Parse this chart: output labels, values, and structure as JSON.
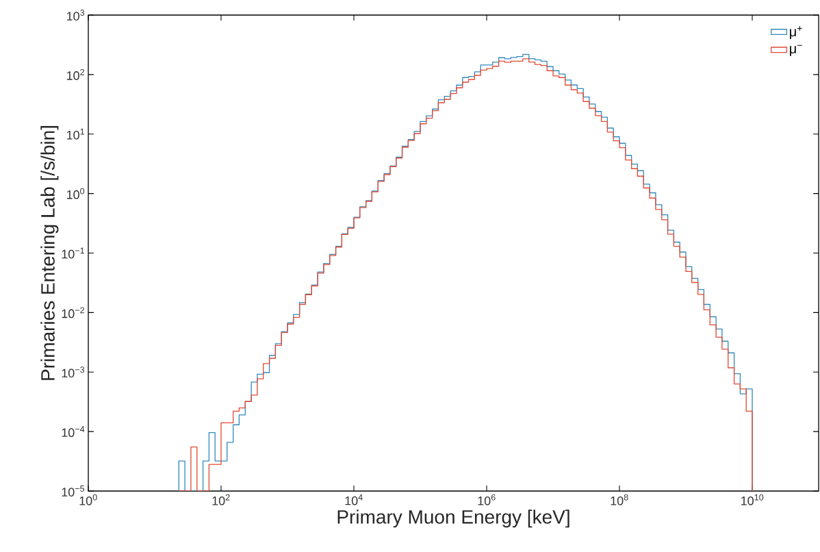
{
  "chart_data": {
    "type": "histogram",
    "xlabel": "Primary Muon Energy [keV]",
    "ylabel": "Primaries Entering Lab [/s/bin]",
    "log": "xy",
    "legend": "top right",
    "xlim": [
      1,
      100000000000.0
    ],
    "ylim": [
      1e-05,
      1000.0
    ],
    "xticks": [
      {
        "value": 1,
        "label": "10$^{0}$"
      },
      {
        "value": 100.0,
        "label": "10$^{2}$"
      },
      {
        "value": 10000.0,
        "label": "10$^{4}$"
      },
      {
        "value": 1000000.0,
        "label": "10$^{6}$"
      },
      {
        "value": 100000000.0,
        "label": "10$^{8}$"
      },
      {
        "value": 10000000000.0,
        "label": "10$^{10}$"
      }
    ],
    "yticks": [
      {
        "value": 1e-05,
        "label": "10$^{−5}$"
      },
      {
        "value": 0.0001,
        "label": "10$^{−4}$"
      },
      {
        "value": 0.001,
        "label": "10$^{−3}$"
      },
      {
        "value": 0.01,
        "label": "10$^{−2}$"
      },
      {
        "value": 0.1,
        "label": "10$^{−1}$"
      },
      {
        "value": 1,
        "label": "10$^{0}$"
      },
      {
        "value": 10.0,
        "label": "10$^{1}$"
      },
      {
        "value": 100.0,
        "label": "10$^{2}$"
      },
      {
        "value": 1000.0,
        "label": "10$^{3}$"
      }
    ],
    "bins": [
      23.1,
      28.5,
      35.1,
      43.3,
      53.4,
      65.8,
      81.1,
      100.0,
      123.0,
      152.0,
      187.0,
      231.0,
      285.0,
      351.0,
      433.0,
      534.0,
      658.0,
      811.0,
      1000.0,
      1230.0,
      1520.0,
      1870.0,
      2310.0,
      2850.0,
      3510.0,
      4330.0,
      5340.0,
      6580.0,
      8110.0,
      10000.0,
      12300.0,
      15200.0,
      18700.0,
      23100.0,
      28500.0,
      35100.0,
      43300.0,
      53400.0,
      65800.0,
      81100.0,
      100000.0,
      123000.0,
      152000.0,
      187000.0,
      231000.0,
      285000.0,
      351000.0,
      433000.0,
      534000.0,
      658000.0,
      811000.0,
      1000000.0,
      1230000.0,
      1520000.0,
      1870000.0,
      2310000.0,
      2850000.0,
      3510000.0,
      4330000.0,
      5340000.0,
      6580000.0,
      8110000.0,
      10000000.0,
      12300000.0,
      15200000.0,
      18700000.0,
      23100000.0,
      28500000.0,
      35100000.0,
      43300000.0,
      53400000.0,
      65800000.0,
      81100000.0,
      100000000.0,
      123000000.0,
      152000000.0,
      187000000.0,
      231000000.0,
      285000000.0,
      351000000.0,
      433000000.0,
      534000000.0,
      658000000.0,
      811000000.0,
      1000000000.0,
      1230000000.0,
      1520000000.0,
      1870000000.0,
      2310000000.0,
      2850000000.0,
      3510000000.0,
      4330000000.0,
      5340000000.0,
      6580000000.0,
      8110000000.0,
      10000000000.0
    ],
    "series": [
      {
        "name": "μ$^{+}$",
        "color": "#348abd",
        "values": [
          3.2e-05,
          null,
          null,
          null,
          3.2e-05,
          9.6e-05,
          3.2e-05,
          3.2e-05,
          6.6e-05,
          0.00013,
          0.00019,
          0.00032,
          0.00068,
          0.00092,
          0.00098,
          0.0019,
          0.003,
          0.0048,
          0.0067,
          0.0093,
          0.0148,
          0.0205,
          0.029,
          0.048,
          0.067,
          0.095,
          0.13,
          0.21,
          0.27,
          0.4,
          0.6,
          0.76,
          1.1,
          1.65,
          2.17,
          2.9,
          4.1,
          6.25,
          8.1,
          11.1,
          16.3,
          20.3,
          26.3,
          37.7,
          43.1,
          53.2,
          66.5,
          89,
          92.9,
          111,
          145,
          145,
          162,
          192,
          184,
          194,
          201,
          219,
          185,
          177,
          168,
          136,
          116,
          102,
          81,
          67,
          58.2,
          42,
          32,
          24,
          19.2,
          12.6,
          9.0,
          7.0,
          4.37,
          3.12,
          2.42,
          1.44,
          1.03,
          0.65,
          0.44,
          0.242,
          0.153,
          0.104,
          0.059,
          0.0377,
          0.0245,
          0.0137,
          0.0085,
          0.0053,
          0.0033,
          0.0021,
          0.00094,
          0.00043,
          0.00052
        ]
      },
      {
        "name": "μ$^{−}$",
        "color": "#e24a33",
        "values": [
          null,
          null,
          5.5e-05,
          null,
          null,
          2.8e-05,
          2.8e-05,
          0.00014,
          0.00014,
          0.00022,
          0.00025,
          0.00032,
          0.00041,
          0.00077,
          0.00139,
          0.0017,
          0.0028,
          0.0046,
          0.0064,
          0.0083,
          0.0138,
          0.02,
          0.028,
          0.046,
          0.064,
          0.091,
          0.126,
          0.205,
          0.26,
          0.39,
          0.58,
          0.74,
          1.07,
          1.6,
          2.08,
          2.84,
          3.96,
          6.0,
          7.8,
          10.2,
          14.9,
          18.5,
          24.7,
          33.6,
          38.4,
          47.9,
          59.8,
          74.5,
          82.8,
          97,
          119,
          126,
          138,
          168,
          161,
          168,
          168,
          184,
          162,
          148,
          142,
          116,
          95,
          89,
          66.5,
          55.7,
          48.8,
          35.2,
          27.2,
          20.4,
          16.3,
          10.8,
          7.7,
          5.9,
          3.67,
          2.62,
          1.96,
          1.24,
          0.84,
          0.54,
          0.363,
          0.208,
          0.13,
          0.0855,
          0.049,
          0.032,
          0.0202,
          0.0111,
          0.0062,
          0.00385,
          0.00242,
          0.00118,
          0.00063,
          0.00052,
          0.00022
        ]
      }
    ]
  }
}
